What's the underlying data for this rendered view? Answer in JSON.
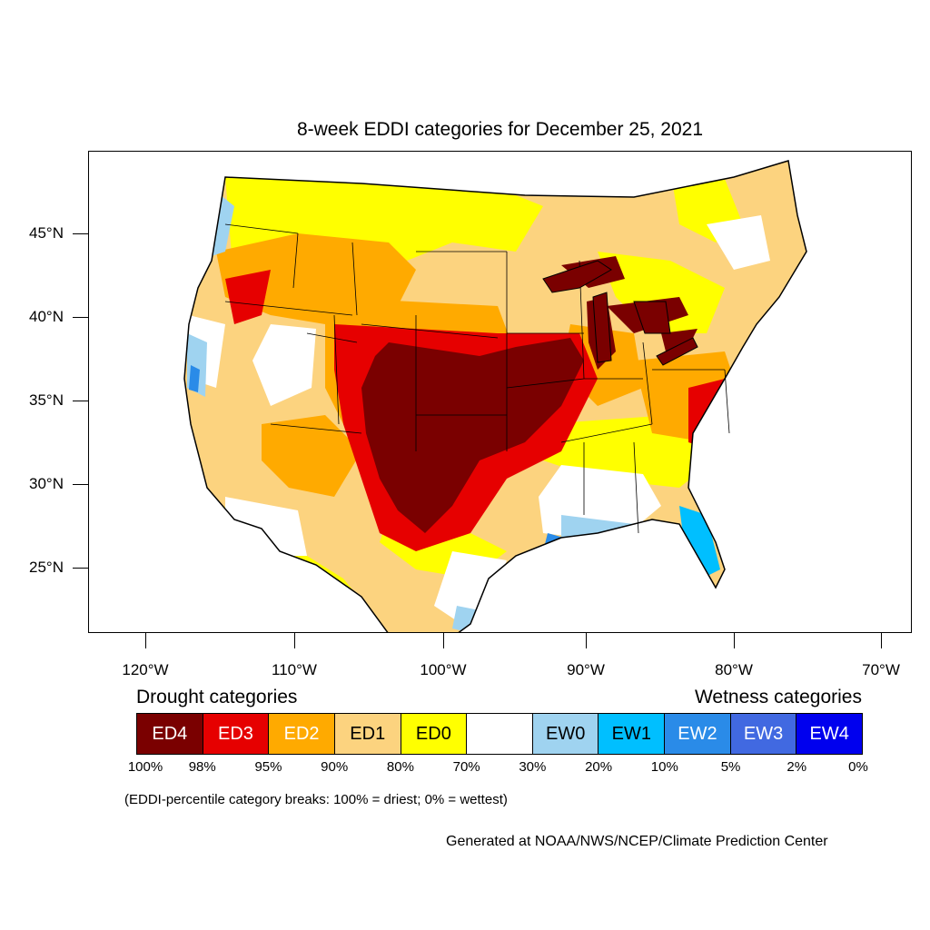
{
  "title": "8-week EDDI categories for December 25, 2021",
  "lat_labels": [
    "45°N",
    "40°N",
    "35°N",
    "30°N",
    "25°N"
  ],
  "lon_labels": [
    "120°W",
    "110°W",
    "100°W",
    "90°W",
    "80°W",
    "70°W"
  ],
  "legend": {
    "drought_heading": "Drought categories",
    "wetness_heading": "Wetness categories",
    "categories": [
      {
        "label": "ED4",
        "color": "#7a0000",
        "text_color": "#ffffff"
      },
      {
        "label": "ED3",
        "color": "#e60000",
        "text_color": "#ffffff"
      },
      {
        "label": "ED2",
        "color": "#ffaa00",
        "text_color": "#ffffff"
      },
      {
        "label": "ED1",
        "color": "#fcd37f",
        "text_color": "#000000"
      },
      {
        "label": "ED0",
        "color": "#ffff00",
        "text_color": "#000000"
      },
      {
        "label": "",
        "color": "#ffffff",
        "text_color": "#000000"
      },
      {
        "label": "EW0",
        "color": "#9fd3f0",
        "text_color": "#000000"
      },
      {
        "label": "EW1",
        "color": "#00bfff",
        "text_color": "#000000"
      },
      {
        "label": "EW2",
        "color": "#2a8be8",
        "text_color": "#ffffff"
      },
      {
        "label": "EW3",
        "color": "#4169e1",
        "text_color": "#ffffff"
      },
      {
        "label": "EW4",
        "color": "#0000ee",
        "text_color": "#ffffff"
      }
    ],
    "breaks": [
      "100%",
      "98%",
      "95%",
      "90%",
      "80%",
      "70%",
      "30%",
      "20%",
      "10%",
      "5%",
      "2%",
      "0%"
    ]
  },
  "note": "(EDDI-percentile category breaks: 100% = driest; 0% = wettest)",
  "credit": "Generated at NOAA/NWS/NCEP/Climate Prediction Center"
}
